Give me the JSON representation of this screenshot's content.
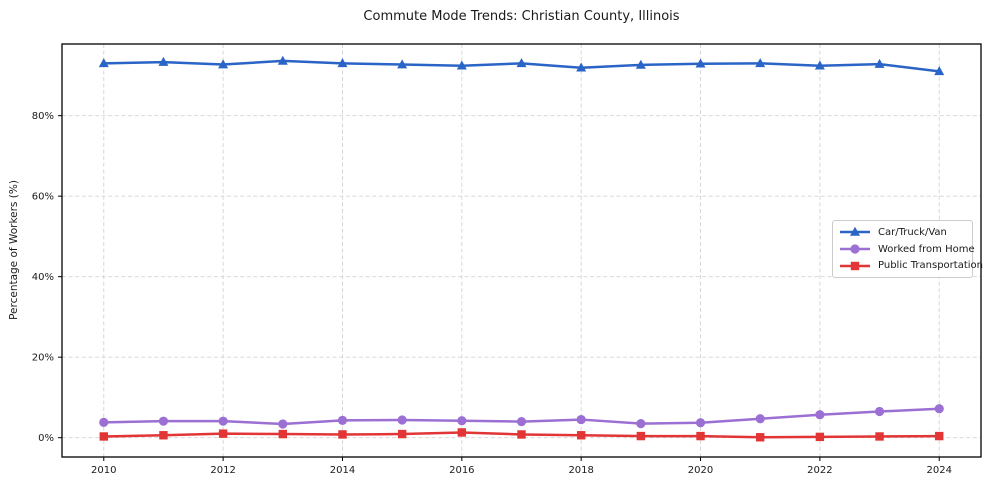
{
  "title": "Commute Mode Trends: Christian County, Illinois",
  "axes": {
    "ylabel": "Percentage of Workers (%)",
    "xlabel": ""
  },
  "colors": {
    "car_truck_van": "#2a64c6",
    "worked_from_home": "#9b6fd3",
    "public_transportation": "#e23535",
    "grid": "#d3d3d3",
    "spine": "#000000",
    "text": "#1a1a1a"
  },
  "chart_data": {
    "type": "line",
    "title": "Commute Mode Trends: Christian County, Illinois",
    "xlabel": "",
    "ylabel": "Percentage of Workers (%)",
    "x": [
      2010,
      2011,
      2012,
      2013,
      2014,
      2015,
      2016,
      2017,
      2018,
      2019,
      2020,
      2021,
      2022,
      2023,
      2024
    ],
    "series": [
      {
        "name": "Car/Truck/Van",
        "color": "#2a64c6",
        "marker": "triangle",
        "values": [
          93.0,
          93.3,
          92.7,
          93.6,
          93.0,
          92.7,
          92.4,
          93.0,
          91.9,
          92.6,
          92.9,
          93.0,
          92.4,
          92.8,
          91.0
        ]
      },
      {
        "name": "Worked from Home",
        "color": "#9b6fd3",
        "marker": "circle",
        "values": [
          3.8,
          4.1,
          4.1,
          3.4,
          4.3,
          4.4,
          4.2,
          4.0,
          4.5,
          3.5,
          3.7,
          4.7,
          5.7,
          6.5,
          7.2
        ]
      },
      {
        "name": "Public Transportation",
        "color": "#e23535",
        "marker": "square",
        "values": [
          0.3,
          0.6,
          1.0,
          0.9,
          0.8,
          0.9,
          1.3,
          0.8,
          0.6,
          0.4,
          0.4,
          0.1,
          0.2,
          0.3,
          0.4
        ]
      }
    ],
    "xticks": [
      2010,
      2012,
      2014,
      2016,
      2018,
      2020,
      2022,
      2024
    ],
    "xtick_labels": [
      "2010",
      "2012",
      "2014",
      "2016",
      "2018",
      "2020",
      "2022",
      "2024"
    ],
    "yticks": [
      0,
      20,
      40,
      60,
      80
    ],
    "ytick_labels": [
      "0%",
      "20%",
      "40%",
      "60%",
      "80%"
    ],
    "xlim": [
      2009.3,
      2024.7
    ],
    "ylim": [
      -4.8,
      97.8
    ],
    "grid": true,
    "grid_style": "dashed",
    "legend_position": "center-right"
  }
}
